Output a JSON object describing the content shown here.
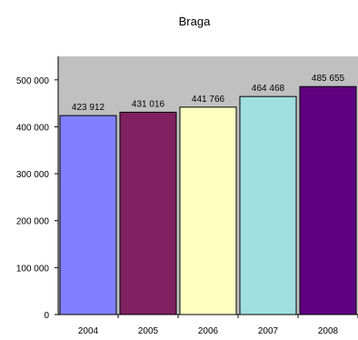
{
  "chart_data": {
    "type": "bar",
    "title": "Braga",
    "xlabel": "",
    "ylabel": "",
    "categories": [
      "2004",
      "2005",
      "2006",
      "2007",
      "2008"
    ],
    "series": [
      {
        "values": [
          423912,
          431016,
          441766,
          464468,
          485655
        ]
      }
    ],
    "data_labels": [
      "423 912",
      "431 016",
      "441 766",
      "464 468",
      "485 655"
    ],
    "ylim": [
      0,
      550000
    ],
    "yticks": [
      0,
      100000,
      200000,
      300000,
      400000,
      500000
    ],
    "ytick_labels": [
      "0",
      "100 000",
      "200 000",
      "300 000",
      "400 000",
      "500 000"
    ],
    "bar_colors": [
      "#8080ff",
      "#802060",
      "#ffffc0",
      "#a0e0e0",
      "#600080"
    ],
    "plot_background": "#c0c0c0",
    "grid": false,
    "legend": "none"
  }
}
